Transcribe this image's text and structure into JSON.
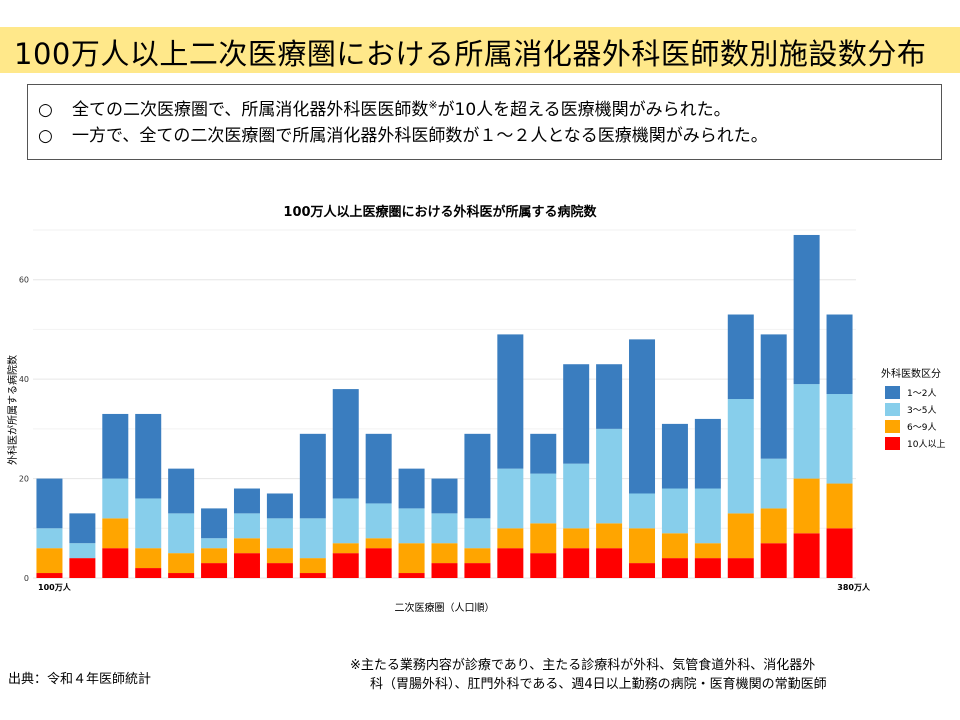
{
  "slide": {
    "title": "100万人以上二次医療圏における所属消化器外科医師数別施設数分布",
    "bullets": [
      {
        "mark": "○",
        "pre": "全ての二次医療圏で、所属消化器外科医医師数",
        "sup": "※",
        "post": "が10人を超える医療機関がみられた。"
      },
      {
        "mark": "○",
        "pre": "一方で、全ての二次医療圏で所属消化器外科医師数が１～２人となる医療機関がみられた。",
        "sup": "",
        "post": ""
      }
    ],
    "source": "出典：令和４年医師統計",
    "note_line1": "※主たる業務内容が診療であり、主たる診療科が外科、気管食道外科、消化器外",
    "note_line2": "科（胃腸外科）、肛門外科である、週4日以上勤務の病院・医育機関の常勤医師"
  },
  "chart_data": {
    "type": "bar",
    "stacked": true,
    "title": "100万人以上医療圏における外科医が所属する病院数",
    "xlabel": "二次医療圏（人口順）",
    "ylabel": "外科医が所属する病院数",
    "ylim": [
      0,
      70
    ],
    "yticks": [
      0,
      20,
      40,
      60
    ],
    "x_first_label": "100万人",
    "x_last_label": "380万人",
    "grid": true,
    "legend_title": "外科医数区分",
    "legend_position": "right",
    "categories": [
      "1",
      "2",
      "3",
      "4",
      "5",
      "6",
      "7",
      "8",
      "9",
      "10",
      "11",
      "12",
      "13",
      "14",
      "15",
      "16",
      "17",
      "18",
      "19",
      "20",
      "21",
      "22",
      "23",
      "24",
      "25"
    ],
    "series": [
      {
        "name": "10人以上",
        "color": "#ff0000",
        "values": [
          1,
          4,
          6,
          2,
          1,
          3,
          5,
          3,
          1,
          5,
          6,
          1,
          3,
          3,
          6,
          5,
          6,
          6,
          3,
          4,
          4,
          4,
          7,
          9,
          10
        ]
      },
      {
        "name": "6～9人",
        "color": "#ffa500",
        "values": [
          5,
          0,
          6,
          4,
          4,
          3,
          3,
          3,
          3,
          2,
          2,
          6,
          4,
          3,
          4,
          6,
          4,
          5,
          7,
          5,
          3,
          9,
          7,
          11,
          9
        ]
      },
      {
        "name": "3～5人",
        "color": "#87ceeb",
        "values": [
          4,
          3,
          8,
          10,
          8,
          2,
          5,
          6,
          8,
          9,
          7,
          7,
          6,
          6,
          12,
          10,
          13,
          19,
          7,
          9,
          11,
          23,
          10,
          19,
          18
        ]
      },
      {
        "name": "1～2人",
        "color": "#3a7dbf",
        "values": [
          10,
          6,
          13,
          17,
          9,
          6,
          5,
          5,
          17,
          22,
          14,
          8,
          7,
          17,
          27,
          8,
          20,
          13,
          31,
          13,
          14,
          17,
          25,
          30,
          16
        ]
      }
    ]
  }
}
